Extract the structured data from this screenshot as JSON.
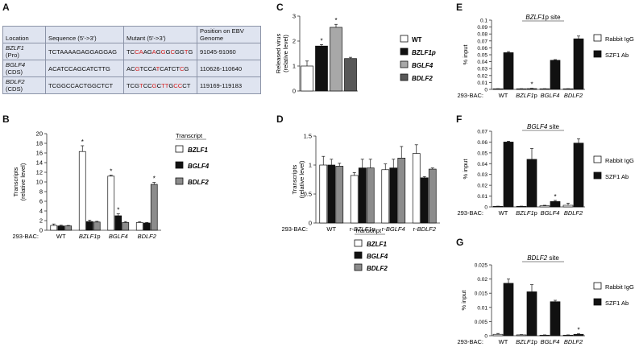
{
  "panels": {
    "A": {
      "letter": "A",
      "table": {
        "headers": [
          "Location",
          "Sequence (5'->3')",
          "Mutant (5'->3')",
          "Position on EBV Genome"
        ],
        "rows": [
          {
            "gene": "BZLF1",
            "region": "(Pro)",
            "sequence": "TCTAAAAGAGGAGGAG",
            "mutant": [
              [
                "TC",
                "k"
              ],
              [
                "CA",
                "r"
              ],
              [
                "AG",
                "k"
              ],
              [
                "A",
                "r"
              ],
              [
                "G",
                "k"
              ],
              [
                "G",
                "r"
              ],
              [
                "G",
                "k"
              ],
              [
                "C",
                "r"
              ],
              [
                "GG",
                "k"
              ],
              [
                "T",
                "r"
              ],
              [
                "G",
                "k"
              ]
            ],
            "position": "91045-91060"
          },
          {
            "gene": "BGLF4",
            "region": "(CDS)",
            "sequence": "ACATCCAGCATCTTG",
            "mutant": [
              [
                "AC",
                "k"
              ],
              [
                "G",
                "r"
              ],
              [
                "TCCA",
                "k"
              ],
              [
                "T",
                "r"
              ],
              [
                "CATCT",
                "k"
              ],
              [
                "C",
                "r"
              ],
              [
                "G",
                "k"
              ]
            ],
            "position": "110626-110640"
          },
          {
            "gene": "BDLF2",
            "region": "(CDS)",
            "sequence": "TCGGCCACTGGCTCT",
            "mutant": [
              [
                "TC",
                "k"
              ],
              [
                "G",
                "k"
              ],
              [
                "T",
                "r"
              ],
              [
                "CC",
                "k"
              ],
              [
                "G",
                "r"
              ],
              [
                "C",
                "k"
              ],
              [
                "TT",
                "r"
              ],
              [
                "G",
                "k"
              ],
              [
                "CC",
                "r"
              ],
              [
                "CT",
                "k"
              ]
            ],
            "position": "119169-119183"
          }
        ]
      }
    },
    "B": {
      "letter": "B"
    },
    "C": {
      "letter": "C"
    },
    "D": {
      "letter": "D"
    },
    "E": {
      "letter": "E"
    },
    "F": {
      "letter": "F"
    },
    "G": {
      "letter": "G"
    }
  },
  "colors": {
    "white": "#ffffff",
    "black": "#111111",
    "lightgray": "#a8a8a8",
    "darkgray": "#585858",
    "gray": "#8c8c8c"
  },
  "chart_data": [
    {
      "id": "B",
      "type": "bar",
      "ylabel": "Transcripts\n(relative level)",
      "ylim": [
        0,
        20
      ],
      "yticks": [
        0,
        2,
        4,
        6,
        8,
        10,
        12,
        14,
        16,
        18,
        20
      ],
      "row_label": "293-BAC:",
      "categories": [
        {
          "label": "WT",
          "italic": false
        },
        {
          "label": "BZLF1p",
          "italic": "BZLF1",
          "suffix": "p"
        },
        {
          "label": "BGLF4",
          "italic": true
        },
        {
          "label": "BDLF2",
          "italic": true
        }
      ],
      "legend_title": "Transcript",
      "series": [
        {
          "name": "BZLF1",
          "color": "white",
          "values": [
            1.0,
            16.3,
            11.2,
            1.6
          ],
          "errors": [
            0.3,
            1.2,
            0.2,
            0.15
          ],
          "stars": [
            false,
            true,
            true,
            false
          ]
        },
        {
          "name": "BGLF4",
          "color": "black",
          "values": [
            0.9,
            1.8,
            3.0,
            1.5
          ],
          "errors": [
            0.15,
            0.3,
            0.4,
            0.1
          ],
          "stars": [
            false,
            false,
            true,
            false
          ]
        },
        {
          "name": "BDLF2",
          "color": "gray",
          "values": [
            0.9,
            1.7,
            1.6,
            9.5
          ],
          "errors": [
            0.1,
            0.15,
            0.2,
            0.4
          ],
          "stars": [
            false,
            false,
            false,
            true
          ]
        }
      ]
    },
    {
      "id": "C",
      "type": "bar",
      "ylabel": "Released virus\n(relative level)",
      "ylim": [
        0,
        3
      ],
      "yticks": [
        0,
        1,
        2,
        3
      ],
      "categories": [
        {
          "label": "WT"
        },
        {
          "label": "BZLF1p"
        },
        {
          "label": "BGLF4"
        },
        {
          "label": "BDLF2"
        }
      ],
      "values": [
        1.0,
        1.8,
        2.55,
        1.3
      ],
      "errors": [
        0.2,
        0.06,
        0.12,
        0.05
      ],
      "stars": [
        false,
        true,
        true,
        false
      ],
      "colors": [
        "white",
        "black",
        "lightgray",
        "darkgray"
      ],
      "legend": [
        {
          "label": "WT",
          "italic": false,
          "color": "white"
        },
        {
          "label": "BZLF1p",
          "italic": true,
          "color": "black"
        },
        {
          "label": "BGLF4",
          "italic": true,
          "color": "lightgray"
        },
        {
          "label": "BDLF2",
          "italic": true,
          "color": "darkgray"
        }
      ]
    },
    {
      "id": "D",
      "type": "bar",
      "ylabel": "Transcripts\n(relative level)",
      "ylim": [
        0,
        1.5
      ],
      "yticks": [
        0,
        0.5,
        1,
        1.5
      ],
      "ytick_labels": [
        "0",
        "0.5",
        "1",
        "1.5"
      ],
      "row_label": "293-BAC:",
      "categories": [
        {
          "label": "WT"
        },
        {
          "label": "r-BZLF1p",
          "prefix": "r-",
          "italic": "BZLF1",
          "suffix": "p"
        },
        {
          "label": "r-BGLF4",
          "prefix": "r-",
          "italic": "BGLF4"
        },
        {
          "label": "r-BDLF2",
          "prefix": "r-",
          "italic": "BDLF2"
        }
      ],
      "legend_title": "Transcript",
      "series": [
        {
          "name": "BZLF1",
          "color": "white",
          "values": [
            1.0,
            0.82,
            0.92,
            1.2
          ],
          "errors": [
            0.15,
            0.05,
            0.1,
            0.15
          ]
        },
        {
          "name": "BGLF4",
          "color": "black",
          "values": [
            1.0,
            0.95,
            0.95,
            0.78
          ],
          "errors": [
            0.1,
            0.15,
            0.15,
            0.02
          ]
        },
        {
          "name": "BDLF2",
          "color": "gray",
          "values": [
            0.98,
            0.95,
            1.12,
            0.93
          ],
          "errors": [
            0.05,
            0.15,
            0.2,
            0.02
          ]
        }
      ]
    },
    {
      "id": "E",
      "type": "bar",
      "title": "BZLF1p site",
      "title_italic": "BZLF1",
      "title_suffix": "p site",
      "ylabel": "% input",
      "ylim": [
        0,
        0.1
      ],
      "yticks": [
        0,
        0.01,
        0.02,
        0.03,
        0.04,
        0.05,
        0.06,
        0.07,
        0.08,
        0.09,
        0.1
      ],
      "ytick_labels": [
        "0",
        "0.01",
        "0.02",
        "0.03",
        "0.04",
        "0.05",
        "0.06",
        "0.07",
        "0.08",
        "0.09",
        "0.1"
      ],
      "row_label": "293-BAC:",
      "categories": [
        {
          "label": "WT"
        },
        {
          "label": "BZLF1p",
          "italic": "BZLF1",
          "suffix": "p"
        },
        {
          "label": "BGLF4",
          "italic": true
        },
        {
          "label": "BDLF2",
          "italic": true
        }
      ],
      "series": [
        {
          "name": "Rabbit IgG",
          "color": "white",
          "values": [
            0.0008,
            0.0008,
            0.0008,
            0.0008
          ],
          "errors": [
            0.0002,
            0.0002,
            0.0002,
            0.0002
          ],
          "stars": [
            false,
            false,
            false,
            false
          ]
        },
        {
          "name": "SZF1 Ab",
          "color": "black",
          "values": [
            0.053,
            0.001,
            0.042,
            0.073
          ],
          "errors": [
            0.0015,
            0.0005,
            0.001,
            0.004
          ],
          "stars": [
            false,
            true,
            false,
            false
          ]
        }
      ]
    },
    {
      "id": "F",
      "type": "bar",
      "title": "BGLF4 site",
      "title_italic": "BGLF4",
      "title_suffix": " site",
      "ylabel": "% input",
      "ylim": [
        0,
        0.07
      ],
      "yticks": [
        0,
        0.01,
        0.02,
        0.03,
        0.04,
        0.05,
        0.06,
        0.07
      ],
      "ytick_labels": [
        "0",
        "0.01",
        "0.02",
        "0.03",
        "0.04",
        "0.05",
        "0.06",
        "0.07"
      ],
      "row_label": "293-BAC:",
      "categories": [
        {
          "label": "WT"
        },
        {
          "label": "BZLF1p",
          "italic": "BZLF1",
          "suffix": "p"
        },
        {
          "label": "BGLF4",
          "italic": true
        },
        {
          "label": "BDLF2",
          "italic": true
        }
      ],
      "series": [
        {
          "name": "Rabbit IgG",
          "color": "white",
          "values": [
            0.0005,
            0.0005,
            0.001,
            0.0015
          ],
          "errors": [
            0.0002,
            0.0002,
            0.0005,
            0.002
          ],
          "stars": [
            false,
            false,
            false,
            false
          ]
        },
        {
          "name": "SZF1 Ab",
          "color": "black",
          "values": [
            0.06,
            0.044,
            0.005,
            0.059
          ],
          "errors": [
            0.0008,
            0.01,
            0.001,
            0.004
          ],
          "stars": [
            false,
            false,
            true,
            false
          ]
        }
      ]
    },
    {
      "id": "G",
      "type": "bar",
      "title": "BDLF2 site",
      "title_italic": "BDLF2",
      "title_suffix": " site",
      "ylabel": "% input",
      "ylim": [
        0,
        0.025
      ],
      "yticks": [
        0,
        0.005,
        0.01,
        0.015,
        0.02,
        0.025
      ],
      "ytick_labels": [
        "0",
        "0.005",
        "0.01",
        "0.015",
        "0.02",
        "0.025"
      ],
      "row_label": "293-BAC:",
      "categories": [
        {
          "label": "WT"
        },
        {
          "label": "BZLF1p",
          "italic": "BZLF1",
          "suffix": "p"
        },
        {
          "label": "BGLF4",
          "italic": true
        },
        {
          "label": "BDLF2",
          "italic": true
        }
      ],
      "series": [
        {
          "name": "Rabbit IgG",
          "color": "white",
          "values": [
            0.0005,
            0.0003,
            0.0002,
            0.0002
          ],
          "errors": [
            0.0003,
            0.0001,
            0.0001,
            0.0001
          ],
          "stars": [
            false,
            false,
            false,
            false
          ]
        },
        {
          "name": "SZF1 Ab",
          "color": "black",
          "values": [
            0.0185,
            0.0155,
            0.012,
            0.0005
          ],
          "errors": [
            0.0015,
            0.0025,
            0.0005,
            0.0002
          ],
          "stars": [
            false,
            false,
            false,
            true
          ]
        }
      ]
    }
  ]
}
